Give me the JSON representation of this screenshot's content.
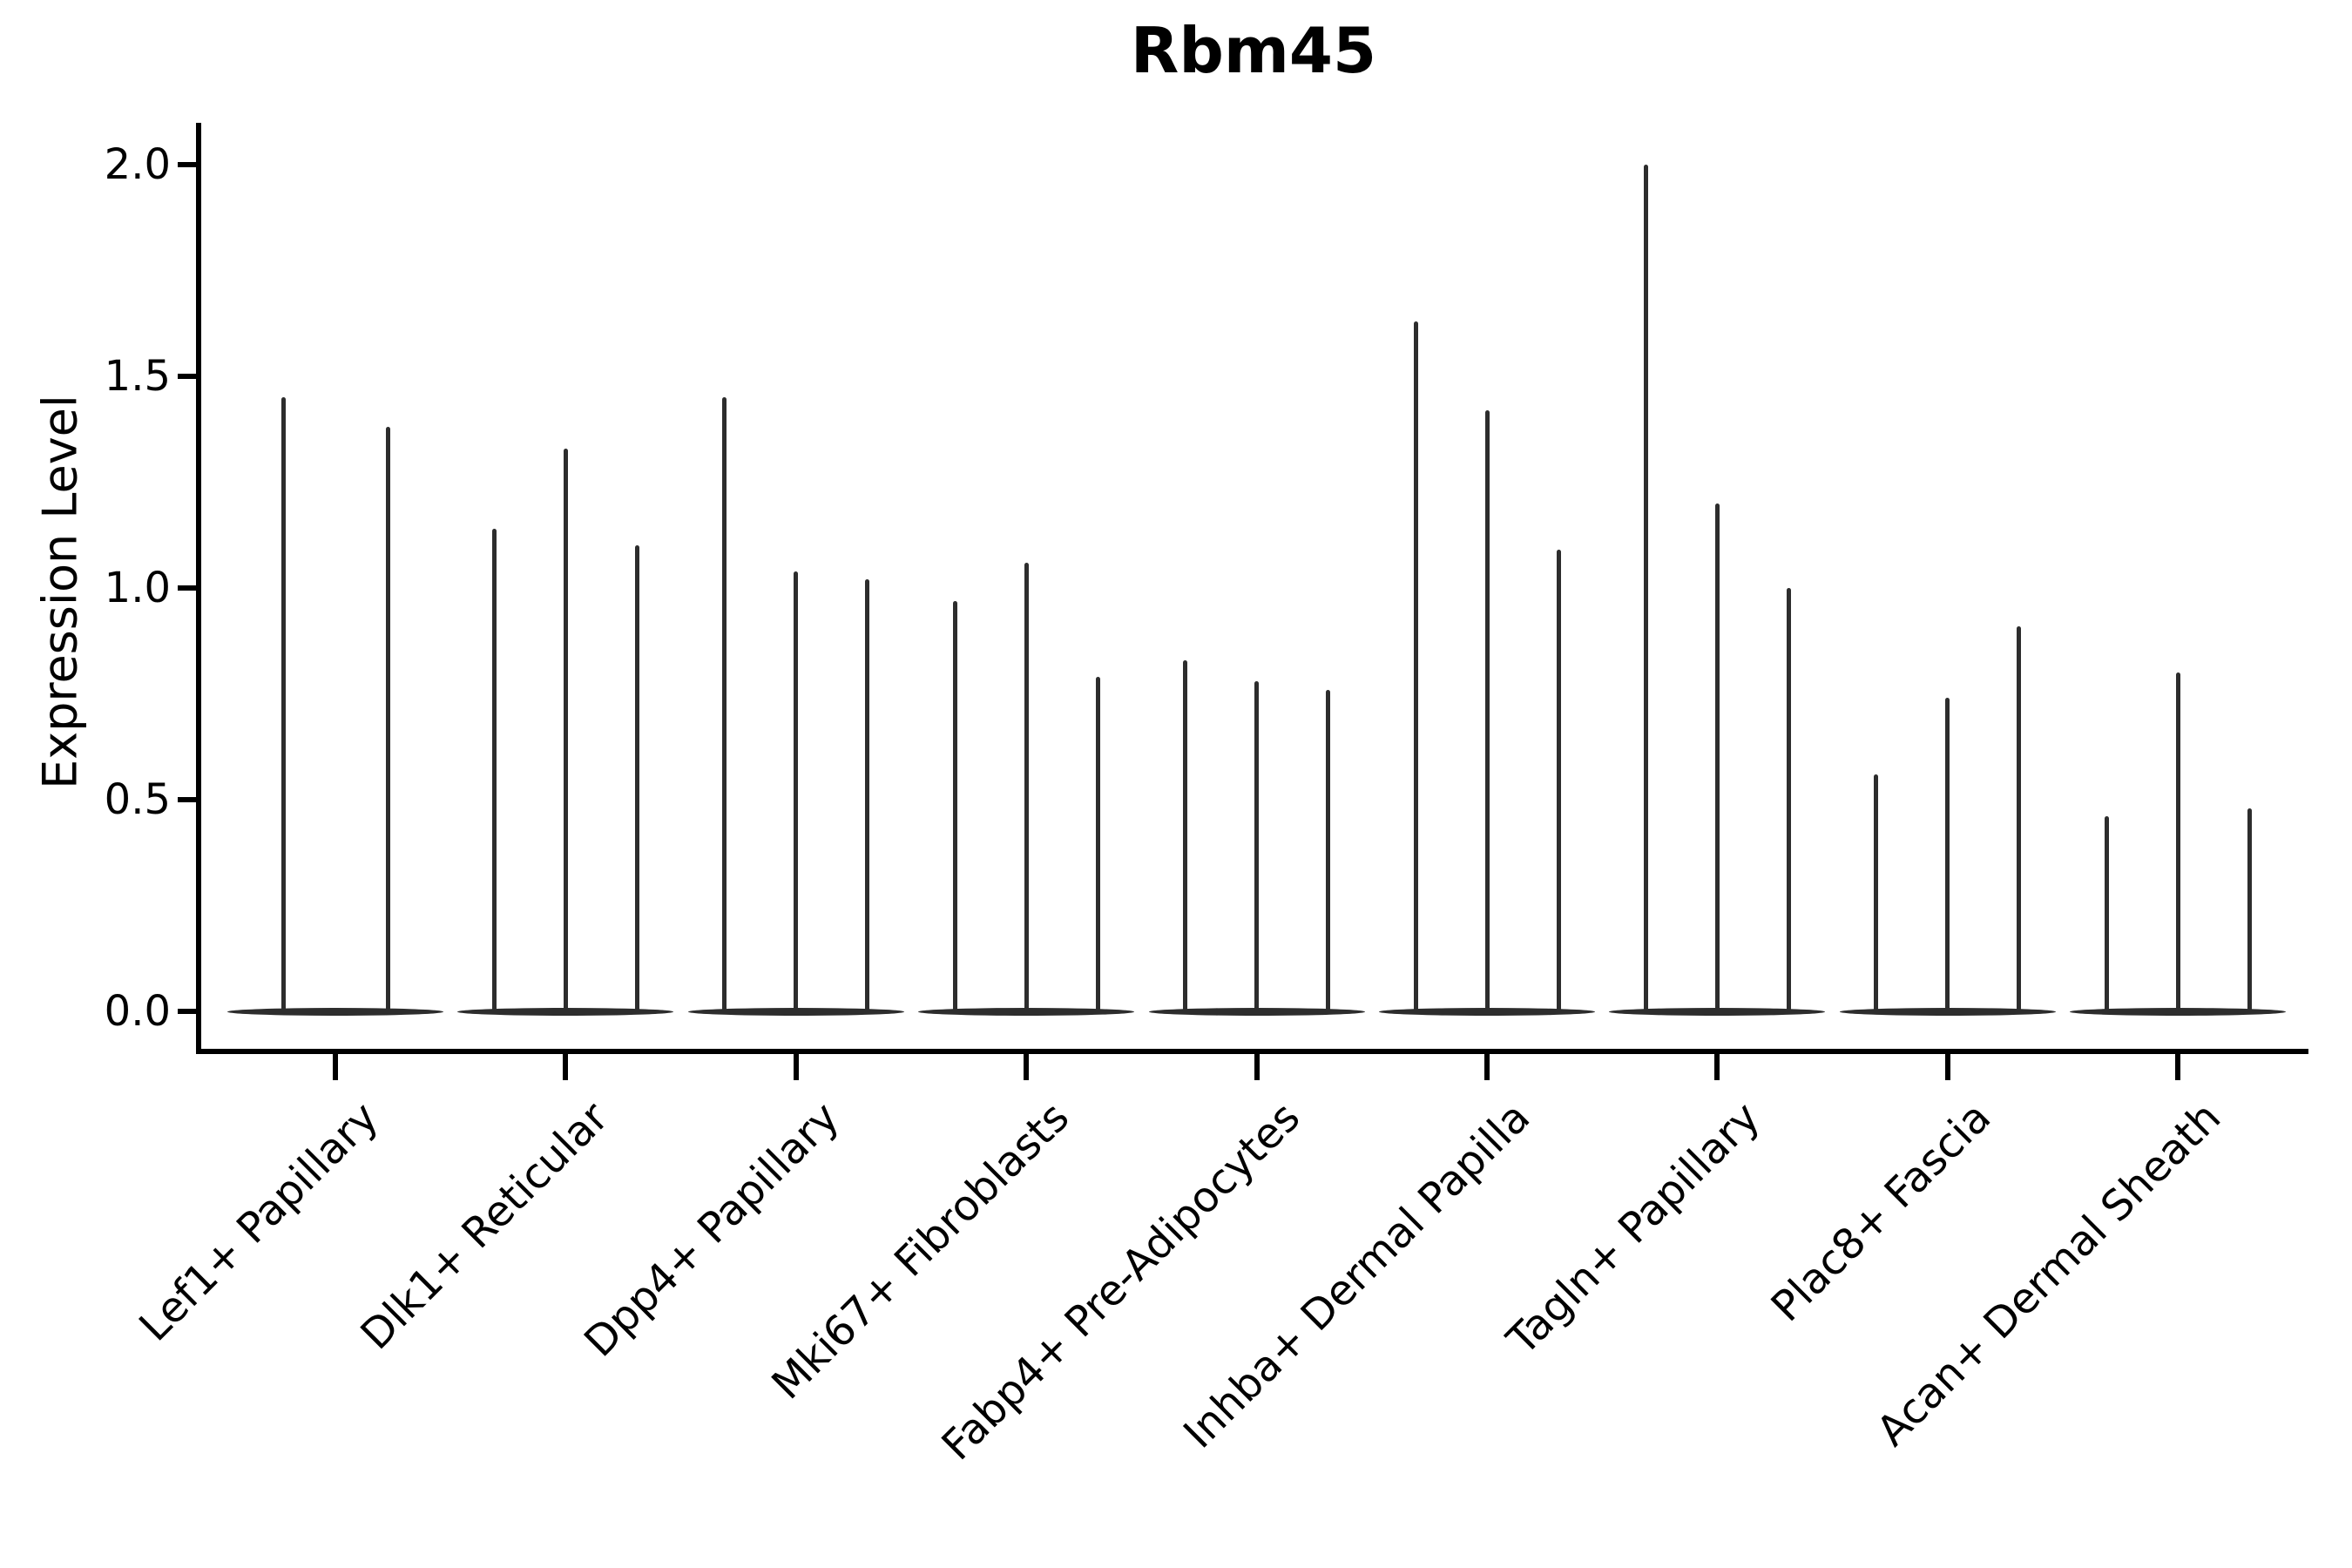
{
  "figure": {
    "title": "Rbm45",
    "ylabel": "Expression Level"
  },
  "chart_data": {
    "type": "violin",
    "title": "Rbm45",
    "xlabel": "",
    "ylabel": "Expression Level",
    "ylim": [
      -0.09,
      2.1
    ],
    "yticks": [
      "0.0",
      "0.5",
      "1.0",
      "1.5",
      "2.0"
    ],
    "ytick_values": [
      0.0,
      0.5,
      1.0,
      1.5,
      2.0
    ],
    "grid": false,
    "legend_position": "none",
    "style_note": "sparse expression: each violin renders as a thin vertical spike to its max value plus a flat collapsed base at 0",
    "categories": [
      "Lef1+ Papillary",
      "Dlk1+ Reticular",
      "Dpp4+ Papillary",
      "Mki67+ Fibroblasts",
      "Fabp4+ Pre-Adipocytes",
      "Inhba+ Dermal Papilla",
      "Tagln+ Papillary",
      "Plac8+ Fascia",
      "Acan+ Dermal Sheath"
    ],
    "violins": [
      {
        "category": "Lef1+ Papillary",
        "spike_values": [
          1.45,
          1.38
        ]
      },
      {
        "category": "Dlk1+ Reticular",
        "spike_values": [
          1.14,
          1.33,
          1.1
        ]
      },
      {
        "category": "Dpp4+ Papillary",
        "spike_values": [
          1.45,
          1.04,
          1.02
        ]
      },
      {
        "category": "Mki67+ Fibroblasts",
        "spike_values": [
          0.97,
          1.06,
          0.79
        ]
      },
      {
        "category": "Fabp4+ Pre-Adipocytes",
        "spike_values": [
          0.83,
          0.78,
          0.76
        ]
      },
      {
        "category": "Inhba+ Dermal Papilla",
        "spike_values": [
          1.63,
          1.42,
          1.09
        ]
      },
      {
        "category": "Tagln+ Papillary",
        "spike_values": [
          2.0,
          1.2,
          1.0
        ]
      },
      {
        "category": "Plac8+ Fascia",
        "spike_values": [
          0.56,
          0.74,
          0.91
        ]
      },
      {
        "category": "Acan+ Dermal Sheath",
        "spike_values": [
          0.46,
          0.8,
          0.48
        ]
      }
    ],
    "colors": {
      "violin_line": "#2d2d2d",
      "axis": "#000000",
      "text": "#000000",
      "background": "#ffffff"
    }
  }
}
